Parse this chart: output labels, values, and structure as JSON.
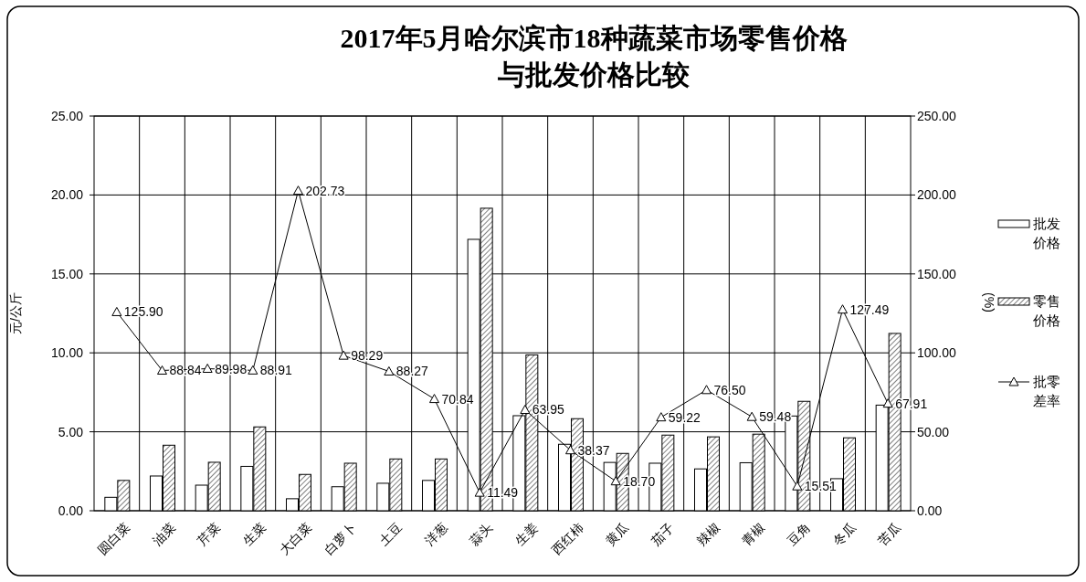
{
  "chart_data": {
    "type": "bar",
    "title": "2017年5月哈尔滨市18种蔬菜市场零售价格与批发价格比较",
    "ylabel": "元/公斤",
    "y2label": "(%)",
    "categories": [
      "圆白菜",
      "油菜",
      "芹菜",
      "生菜",
      "大白菜",
      "白萝卜",
      "土豆",
      "洋葱",
      "蒜头",
      "生姜",
      "西红柿",
      "黄瓜",
      "茄子",
      "辣椒",
      "青椒",
      "豆角",
      "冬瓜",
      "苦瓜"
    ],
    "series": [
      {
        "name": "批发价格",
        "color": "#ffffff",
        "values": [
          0.85,
          2.2,
          1.62,
          2.81,
          0.76,
          1.52,
          1.74,
          1.92,
          17.19,
          6.02,
          4.21,
          3.06,
          3.01,
          2.65,
          3.04,
          6.0,
          2.03,
          6.69
        ]
      },
      {
        "name": "零售价格",
        "color": "#000000",
        "values": [
          1.92,
          4.15,
          3.07,
          5.31,
          2.3,
          3.01,
          3.28,
          3.28,
          19.16,
          9.87,
          5.83,
          3.63,
          4.79,
          4.68,
          4.85,
          6.93,
          4.62,
          11.23
        ]
      },
      {
        "name": "批零差率",
        "type": "line",
        "axis": "y2",
        "color": "#000000",
        "marker": "triangle",
        "values": [
          125.9,
          88.84,
          89.98,
          88.91,
          202.73,
          98.29,
          88.27,
          70.84,
          11.49,
          63.95,
          38.37,
          18.7,
          59.22,
          76.5,
          59.48,
          15.51,
          127.49,
          67.91
        ],
        "value_labels": [
          "125.90",
          "88.84",
          "89.98",
          "88.91",
          "202.73",
          "98.29",
          "88.27",
          "70.84",
          "11.49",
          "63.95",
          "38.37",
          "18.70",
          "59.22",
          "76.50",
          "59.48",
          "15.51",
          "127.49",
          "67.91"
        ]
      }
    ],
    "ylim": [
      0,
      25
    ],
    "yticks": [
      {
        "value": 0,
        "label": "0.00"
      },
      {
        "value": 5,
        "label": "5.00"
      },
      {
        "value": 10,
        "label": "10.00"
      },
      {
        "value": 15,
        "label": "15.00"
      },
      {
        "value": 20,
        "label": "20.00"
      },
      {
        "value": 25,
        "label": "25.00"
      }
    ],
    "y2lim": [
      0,
      250
    ],
    "y2ticks": [
      {
        "value": 0,
        "label": "0.00"
      },
      {
        "value": 50,
        "label": "50.00"
      },
      {
        "value": 100,
        "label": "100.00"
      },
      {
        "value": 150,
        "label": "150.00"
      },
      {
        "value": 200,
        "label": "200.00"
      },
      {
        "value": 250,
        "label": "250.00"
      }
    ],
    "grid": true,
    "legend": "right"
  }
}
